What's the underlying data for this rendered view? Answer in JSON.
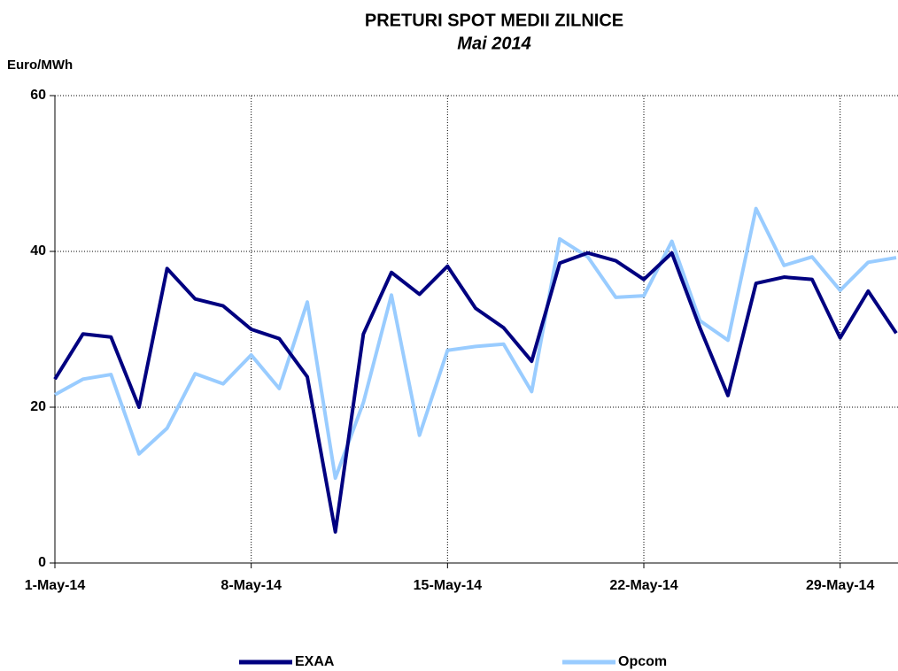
{
  "chart_data": {
    "type": "line",
    "title": "PRETURI SPOT MEDII ZILNICE",
    "subtitle": "Mai 2014",
    "y_label": "Euro/MWh",
    "categories": [
      "1-May-14",
      null,
      null,
      null,
      null,
      null,
      null,
      "8-May-14",
      null,
      null,
      null,
      null,
      null,
      null,
      "15-May-14",
      null,
      null,
      null,
      null,
      null,
      null,
      "22-May-14",
      null,
      null,
      null,
      null,
      null,
      null,
      "29-May-14",
      null,
      null
    ],
    "series": [
      {
        "name": "EXAA",
        "color": "#000080",
        "values": [
          23.6,
          29.4,
          29.0,
          20.0,
          37.8,
          33.9,
          33.0,
          30.0,
          28.8,
          23.9,
          4.0,
          29.4,
          37.3,
          34.5,
          38.1,
          32.7,
          30.2,
          25.9,
          38.5,
          39.8,
          38.8,
          36.4,
          39.8,
          30.2,
          21.5,
          35.9,
          36.7,
          36.4,
          28.9,
          34.9,
          29.5
        ]
      },
      {
        "name": "Opcom",
        "color": "#99ccff",
        "values": [
          21.6,
          23.6,
          24.2,
          14.0,
          17.3,
          24.3,
          23.0,
          26.7,
          22.4,
          33.5,
          10.9,
          20.6,
          34.4,
          16.4,
          27.3,
          27.8,
          28.1,
          22.0,
          41.6,
          39.3,
          34.1,
          34.3,
          41.3,
          31.1,
          28.6,
          45.5,
          38.2,
          39.3,
          35.0,
          38.6,
          39.2
        ]
      }
    ],
    "ylim": [
      0,
      60
    ],
    "yticks": [
      0,
      20,
      40,
      60
    ],
    "grid": true,
    "legend": "bottom"
  }
}
